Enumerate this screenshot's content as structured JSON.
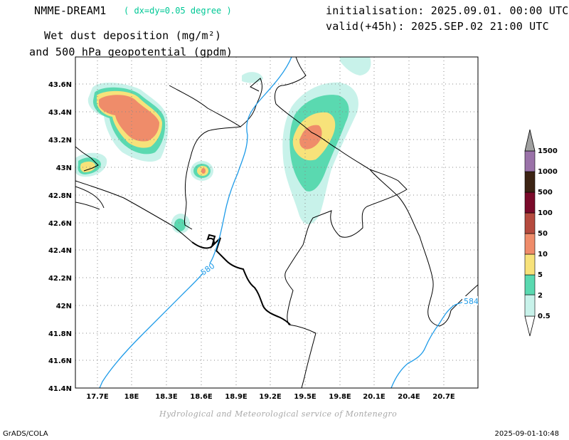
{
  "header": {
    "model": "NMME-DREAM1",
    "resolution": "( dx=dy=0.05 degree )",
    "title_line1": "Wet dust deposition (mg/m²)",
    "title_line2": "and 500 hPa geopotential (gpdm)",
    "init": "initialisation: 2025.09.01. 00:00 UTC",
    "valid": "valid(+45h): 2025.SEP.02 21:00 UTC"
  },
  "map": {
    "lat_ticks": [
      "43.6N",
      "43.4N",
      "43.2N",
      "43N",
      "42.8N",
      "42.6N",
      "42.4N",
      "42.2N",
      "42N",
      "41.8N",
      "41.6N",
      "41.4N"
    ],
    "lon_ticks": [
      "17.7E",
      "18E",
      "18.3E",
      "18.6E",
      "18.9E",
      "19.2E",
      "19.5E",
      "19.8E",
      "20.1E",
      "20.4E",
      "20.7E"
    ],
    "contour_labels": [
      "580",
      "584"
    ]
  },
  "legend": {
    "levels": [
      "0.5",
      "2",
      "5",
      "10",
      "50",
      "100",
      "500",
      "1000",
      "1500"
    ],
    "colors": [
      "#c8f2ea",
      "#5ad9b0",
      "#f7e27a",
      "#ef8c6a",
      "#b54a3e",
      "#7a0a2a",
      "#3c2414",
      "#9a72a8",
      "#a0a0a0"
    ]
  },
  "footer": {
    "credit": "Hydrological and Meteorological service of Montenegro",
    "left": "GrADS/COLA",
    "right": "2025-09-01-10:48"
  }
}
